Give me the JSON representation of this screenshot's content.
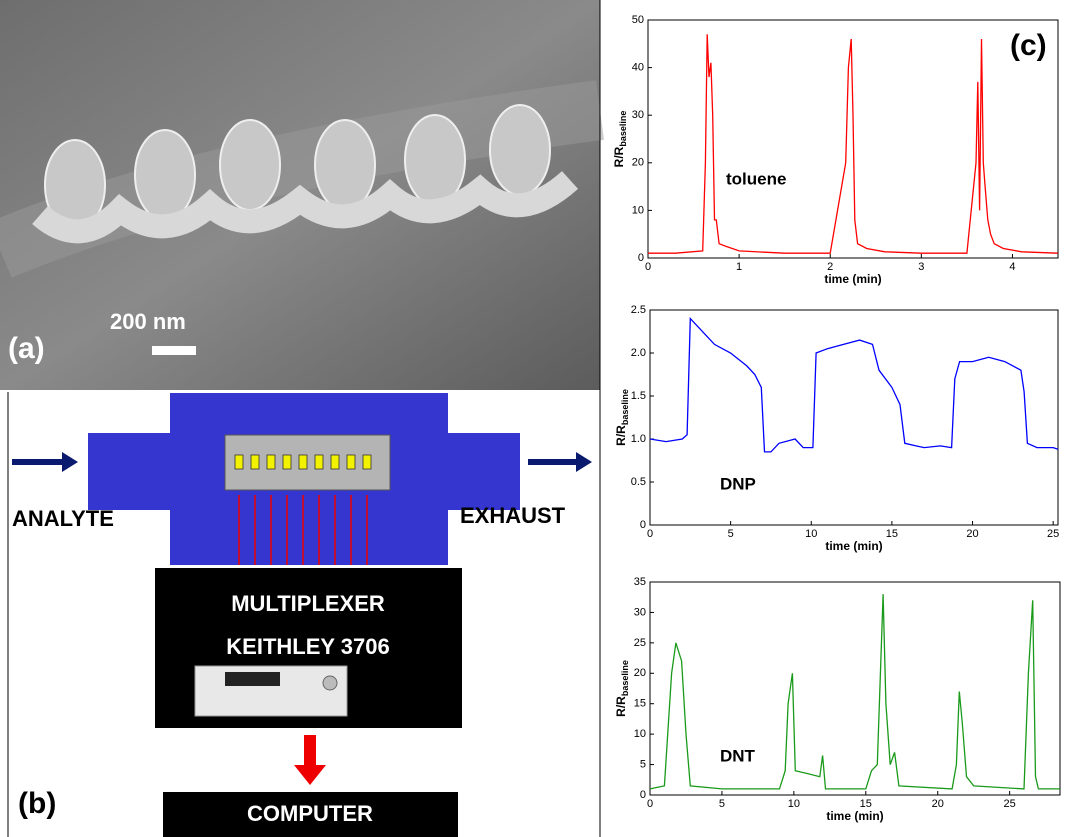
{
  "panels": {
    "a": "(a)",
    "b": "(b)",
    "c": "(c)"
  },
  "sem": {
    "scale_bar": "200 nm"
  },
  "diagram": {
    "inlet": "ANALYTE",
    "outlet": "EXHAUST",
    "multiplexer": "MULTIPLEXER",
    "instrument": "KEITHLEY 3706",
    "computer": "COMPUTER"
  },
  "chart_data": [
    {
      "type": "line",
      "xlabel": "time (min)",
      "ylabel": "R/R",
      "ylabel_sub": "baseline",
      "annotation": "toluene",
      "xlim": [
        0,
        4.5
      ],
      "xticks": [
        0,
        1,
        2,
        3,
        4
      ],
      "ylim": [
        0,
        50
      ],
      "yticks": [
        0,
        10,
        20,
        30,
        40,
        50
      ],
      "x": [
        0,
        0.3,
        0.6,
        0.63,
        0.65,
        0.67,
        0.69,
        0.71,
        0.73,
        0.75,
        0.78,
        0.85,
        1.0,
        1.5,
        2.0,
        2.17,
        2.2,
        2.23,
        2.25,
        2.27,
        2.3,
        2.4,
        2.6,
        3.0,
        3.5,
        3.6,
        3.62,
        3.64,
        3.66,
        3.68,
        3.7,
        3.73,
        3.76,
        3.8,
        3.9,
        4.1,
        4.5
      ],
      "series": [
        {
          "color": "#ff0000",
          "values": [
            1,
            1,
            1.5,
            20,
            47,
            38,
            41,
            30,
            8,
            8,
            3,
            2.5,
            1.5,
            1,
            1,
            20,
            40,
            46,
            30,
            8,
            3,
            2,
            1.3,
            1,
            1,
            20,
            37,
            10,
            46,
            20,
            15,
            8,
            5,
            3,
            2,
            1.3,
            1
          ]
        }
      ]
    },
    {
      "type": "line",
      "xlabel": "time (min)",
      "ylabel": "R/R",
      "ylabel_sub": "baseline",
      "annotation": "DNP",
      "xlim": [
        0,
        25.3
      ],
      "xticks": [
        0,
        5,
        10,
        15,
        20,
        25
      ],
      "ylim": [
        0,
        2.5
      ],
      "yticks": [
        0,
        0.5,
        {
          "value": 1,
          "label": "1.0"
        },
        1.5,
        {
          "value": 2,
          "label": "2.0"
        },
        2.5
      ],
      "x": [
        0,
        1,
        2,
        2.3,
        2.5,
        3,
        4,
        5,
        6,
        6.5,
        6.9,
        7.1,
        7.5,
        8,
        9,
        9.5,
        10.1,
        10.3,
        11,
        12,
        13,
        13.8,
        14.2,
        15,
        15.5,
        15.8,
        16.5,
        17,
        18,
        18.7,
        18.9,
        19.2,
        20,
        21,
        22,
        23,
        23.2,
        23.4,
        24,
        25,
        25.3
      ],
      "series": [
        {
          "color": "#0000ff",
          "values": [
            1.0,
            0.97,
            1.0,
            1.05,
            2.4,
            2.3,
            2.1,
            2.0,
            1.85,
            1.75,
            1.6,
            0.85,
            0.85,
            0.95,
            1.0,
            0.9,
            0.9,
            2.0,
            2.05,
            2.1,
            2.15,
            2.1,
            1.8,
            1.6,
            1.4,
            0.95,
            0.92,
            0.9,
            0.92,
            0.9,
            1.7,
            1.9,
            1.9,
            1.95,
            1.9,
            1.8,
            1.55,
            0.95,
            0.9,
            0.9,
            0.88
          ]
        }
      ]
    },
    {
      "type": "line",
      "xlabel": "time (min)",
      "ylabel": "R/R",
      "ylabel_sub": "baseline",
      "annotation": "DNT",
      "xlim": [
        0,
        28.5
      ],
      "xticks": [
        0,
        5,
        10,
        15,
        20,
        25
      ],
      "ylim": [
        0,
        35
      ],
      "yticks": [
        0,
        5,
        10,
        15,
        20,
        25,
        30,
        35
      ],
      "x": [
        0,
        1,
        1.5,
        1.8,
        2.2,
        2.5,
        2.8,
        5,
        9,
        9.4,
        9.6,
        9.9,
        10.1,
        11,
        11.8,
        12,
        12.2,
        15,
        15.4,
        15.8,
        16.2,
        16.4,
        16.7,
        17,
        17.3,
        21,
        21.3,
        21.5,
        21.7,
        22,
        22.5,
        26,
        26.3,
        26.6,
        26.8,
        27,
        28.5
      ],
      "series": [
        {
          "color": "#1a9a1a",
          "values": [
            1,
            1.5,
            20,
            25,
            22,
            10,
            1.5,
            1,
            1,
            4,
            15,
            20,
            4,
            3.5,
            3,
            6.5,
            1,
            1,
            4,
            5,
            33,
            15,
            5,
            7,
            1.5,
            1,
            5,
            17,
            12,
            3,
            1.5,
            1,
            20,
            32,
            3,
            1,
            1
          ]
        }
      ]
    }
  ]
}
